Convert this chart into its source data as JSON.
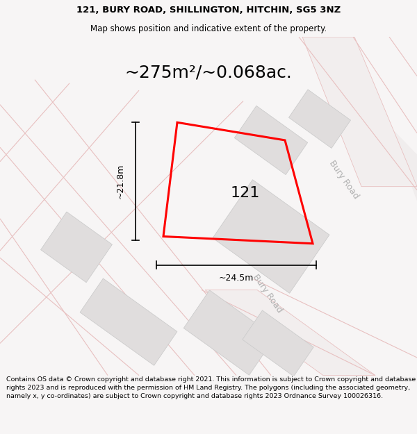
{
  "title_line1": "121, BURY ROAD, SHILLINGTON, HITCHIN, SG5 3NZ",
  "title_line2": "Map shows position and indicative extent of the property.",
  "area_text": "~275m²/~0.068ac.",
  "label_121": "121",
  "dim_width": "~24.5m",
  "dim_height": "~21.8m",
  "road_label1": "Bury Road",
  "road_label2": "Bury Road",
  "footer_text": "Contains OS data © Crown copyright and database right 2021. This information is subject to Crown copyright and database rights 2023 and is reproduced with the permission of HM Land Registry. The polygons (including the associated geometry, namely x, y co-ordinates) are subject to Crown copyright and database rights 2023 Ordnance Survey 100026316.",
  "bg_color": "#f7f5f5",
  "map_bg_color": "#ffffff",
  "road_fill": "#f5f0f0",
  "road_color": "#e8c0c0",
  "building_color": "#e0dddd",
  "building_outline": "#cccccc",
  "title_fontsize": 9.5,
  "subtitle_fontsize": 8.5,
  "area_fontsize": 18,
  "label_fontsize": 16,
  "dim_fontsize": 9,
  "road_label_fontsize": 9,
  "footer_fontsize": 6.8
}
